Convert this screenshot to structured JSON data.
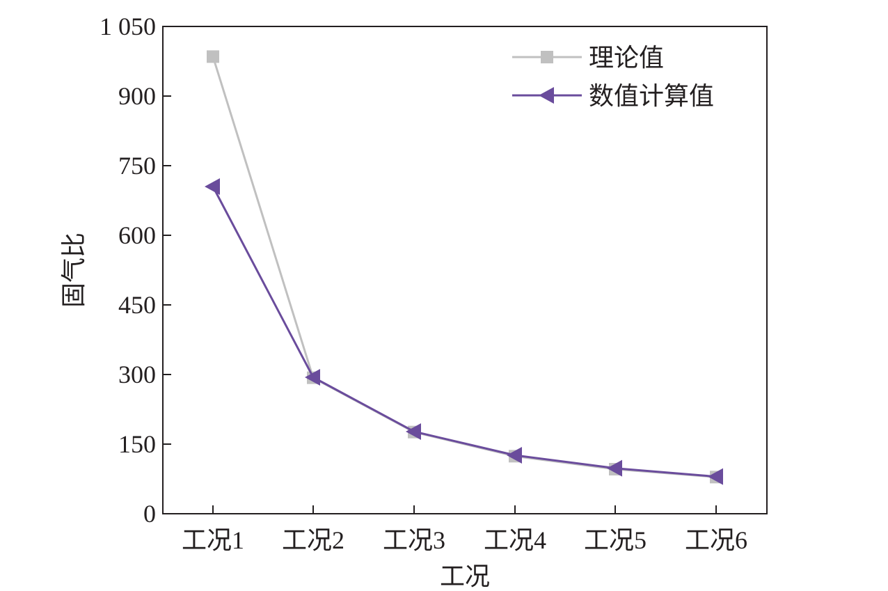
{
  "chart_data": {
    "type": "line",
    "title": "",
    "xlabel": "工况",
    "ylabel": "固气比",
    "categories": [
      "工况1",
      "工况2",
      "工况3",
      "工况4",
      "工况5",
      "工况6"
    ],
    "ylim": [
      0,
      1050
    ],
    "yticks": [
      0,
      150,
      300,
      450,
      600,
      750,
      900,
      1050
    ],
    "ytick_labels": [
      "0",
      "150",
      "300",
      "450",
      "600",
      "750",
      "900",
      "1 050"
    ],
    "grid": false,
    "legend_position": "top-right",
    "series": [
      {
        "name": "理论值",
        "marker": "square",
        "color": "#c0c0c0",
        "values": [
          985,
          293,
          176,
          124,
          96,
          79
        ]
      },
      {
        "name": "数值计算值",
        "marker": "triangle-left",
        "color": "#6a4c9c",
        "values": [
          705,
          294,
          177,
          126,
          98,
          80
        ]
      }
    ]
  }
}
